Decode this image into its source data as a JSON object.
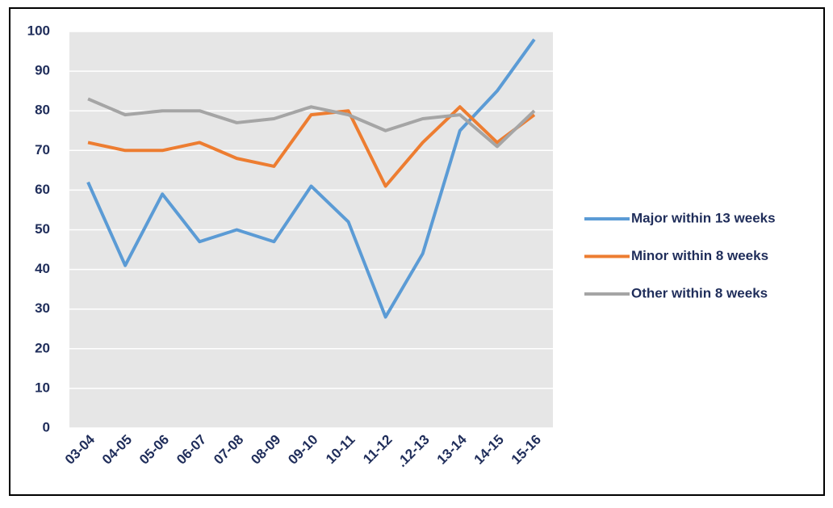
{
  "chart_data": {
    "type": "line",
    "categories": [
      "03-04",
      "04-05",
      "05-06",
      "06-07",
      "07-08",
      "08-09",
      "09-10",
      "10-11",
      "11-12",
      ".12-13",
      "13-14",
      "14-15",
      "15-16"
    ],
    "series": [
      {
        "name": "Major within 13 weeks",
        "color": "#5b9bd5",
        "values": [
          62,
          41,
          59,
          47,
          50,
          47,
          61,
          52,
          28,
          44,
          75,
          85,
          98
        ]
      },
      {
        "name": "Minor within 8 weeks",
        "color": "#ed7d31",
        "values": [
          72,
          70,
          70,
          72,
          68,
          66,
          79,
          80,
          61,
          72,
          81,
          72,
          79
        ]
      },
      {
        "name": "Other within 8 weeks",
        "color": "#a5a5a5",
        "values": [
          83,
          79,
          80,
          80,
          77,
          78,
          81,
          79,
          75,
          78,
          79,
          71,
          80
        ]
      }
    ],
    "ylim": [
      0,
      100
    ],
    "yticks": [
      0,
      10,
      20,
      30,
      40,
      50,
      60,
      70,
      80,
      90,
      100
    ],
    "grid": true,
    "legend": "right"
  }
}
